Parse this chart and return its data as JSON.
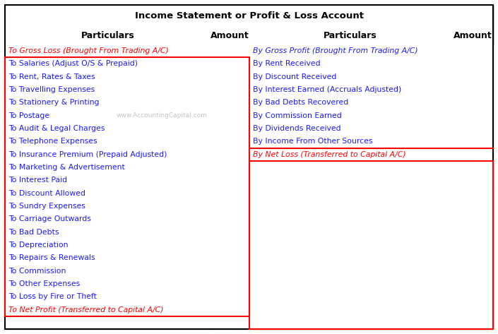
{
  "title": "Income Statement or Profit & Loss Account",
  "left_rows": [
    [
      "To Gross Loss (Brought From Trading A/C)",
      "italic_red"
    ],
    [
      "To Salaries (Adjust O/S & Prepaid)",
      "normal"
    ],
    [
      "To Rent, Rates & Taxes",
      "normal"
    ],
    [
      "To Travelling Expenses",
      "normal"
    ],
    [
      "To Stationery & Printing",
      "normal"
    ],
    [
      "To Postage",
      "normal"
    ],
    [
      "To Audit & Legal Charges",
      "normal"
    ],
    [
      "To Telephone Expenses",
      "normal"
    ],
    [
      "To Insurance Premium (Prepaid Adjusted)",
      "normal"
    ],
    [
      "To Marketing & Advertisement",
      "normal"
    ],
    [
      "To Interest Paid",
      "normal"
    ],
    [
      "To Discount Allowed",
      "normal"
    ],
    [
      "To Sundry Expenses",
      "normal"
    ],
    [
      "To Carriage Outwards",
      "normal"
    ],
    [
      "To Bad Debts",
      "normal"
    ],
    [
      "To Depreciation",
      "normal"
    ],
    [
      "To Repairs & Renewals",
      "normal"
    ],
    [
      "To Commission",
      "normal"
    ],
    [
      "To Other Expenses",
      "normal"
    ],
    [
      "To Loss by Fire or Theft",
      "normal"
    ],
    [
      "To Net Profit (Transferred to Capital A/C)",
      "italic_red"
    ],
    [
      "",
      "normal"
    ]
  ],
  "right_rows": [
    [
      "By Gross Profit (Brought From Trading A/C)",
      "italic"
    ],
    [
      "By Rent Received",
      "normal"
    ],
    [
      "By Discount Received",
      "normal"
    ],
    [
      "By Interest Earned (Accruals Adjusted)",
      "normal"
    ],
    [
      "By Bad Debts Recovered",
      "normal"
    ],
    [
      "By Commission Earned",
      "normal"
    ],
    [
      "By Dividends Received",
      "normal"
    ],
    [
      "By Income From Other Sources",
      "normal"
    ],
    [
      "By Net Loss (Transferred to Capital A/C)",
      "italic_red"
    ],
    [
      "",
      "normal"
    ],
    [
      "",
      "normal"
    ],
    [
      "",
      "normal"
    ],
    [
      "",
      "normal"
    ],
    [
      "",
      "normal"
    ],
    [
      "",
      "normal"
    ],
    [
      "",
      "normal"
    ],
    [
      "",
      "normal"
    ],
    [
      "",
      "normal"
    ],
    [
      "",
      "normal"
    ],
    [
      "",
      "normal"
    ],
    [
      "",
      "normal"
    ],
    [
      "",
      "normal"
    ]
  ],
  "watermark": "www.AccountingCapital.com",
  "bg_color": "#ffffff",
  "title_fontsize": 9.5,
  "cell_fontsize": 7.8,
  "header_fontsize": 9.0,
  "fig_width": 7.05,
  "fig_height": 4.73,
  "dpi": 100
}
